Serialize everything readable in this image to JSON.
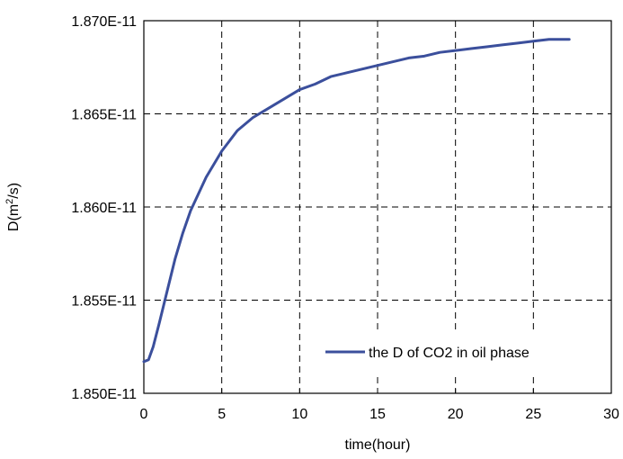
{
  "chart_data": {
    "type": "line",
    "title": "",
    "xlabel": "time(hour)",
    "ylabel_main": "D(m",
    "ylabel_sup": "2",
    "ylabel_tail": "/s)",
    "xlim": [
      0,
      30
    ],
    "ylim": [
      1.85e-11,
      1.87e-11
    ],
    "xticks": [
      0,
      5,
      10,
      15,
      20,
      25,
      30
    ],
    "xtick_labels": [
      "0",
      "5",
      "10",
      "15",
      "20",
      "25",
      "30"
    ],
    "yticks": [
      1.85e-11,
      1.855e-11,
      1.86e-11,
      1.865e-11,
      1.87e-11
    ],
    "ytick_labels": [
      "1.850E-11",
      "1.855E-11",
      "1.860E-11",
      "1.865E-11",
      "1.870E-11"
    ],
    "grid": true,
    "legend_position": "bottom-right",
    "series": [
      {
        "name": "the D of CO2 in oil phase",
        "color": "#3b4f9c",
        "x": [
          0,
          0.3,
          0.6,
          1.0,
          1.5,
          2.0,
          2.5,
          3.0,
          3.5,
          4.0,
          4.5,
          5.0,
          6.0,
          7.0,
          8.0,
          9.0,
          10.0,
          11.0,
          12.0,
          13.0,
          14.0,
          15.0,
          16.0,
          17.0,
          18.0,
          19.0,
          20.0,
          21.0,
          22.0,
          23.0,
          24.0,
          25.0,
          26.0,
          27.3
        ],
        "y": [
          1.8517e-11,
          1.8518e-11,
          1.8525e-11,
          1.8538e-11,
          1.8555e-11,
          1.8572e-11,
          1.8586e-11,
          1.8598e-11,
          1.8607e-11,
          1.8616e-11,
          1.8623e-11,
          1.863e-11,
          1.8641e-11,
          1.8648e-11,
          1.8653e-11,
          1.8658e-11,
          1.8663e-11,
          1.8666e-11,
          1.867e-11,
          1.8672e-11,
          1.8674e-11,
          1.8676e-11,
          1.8678e-11,
          1.868e-11,
          1.8681e-11,
          1.8683e-11,
          1.8684e-11,
          1.8685e-11,
          1.8686e-11,
          1.8687e-11,
          1.8688e-11,
          1.8689e-11,
          1.869e-11,
          1.869e-11
        ]
      }
    ]
  }
}
